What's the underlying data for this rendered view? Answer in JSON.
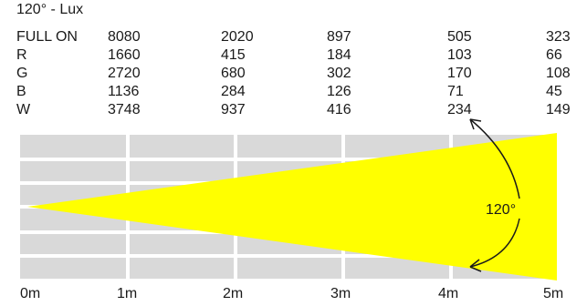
{
  "chart_data": {
    "type": "table",
    "title": "120° - Lux",
    "beam_angle": "120°",
    "distances": [
      "0m",
      "1m",
      "2m",
      "3m",
      "4m",
      "5m"
    ],
    "rows": [
      {
        "label": "FULL ON",
        "values": [
          "8080",
          "2020",
          "897",
          "505",
          "323"
        ]
      },
      {
        "label": "R",
        "values": [
          "1660",
          "415",
          "184",
          "103",
          "66"
        ]
      },
      {
        "label": "G",
        "values": [
          "2720",
          "680",
          "302",
          "170",
          "108"
        ]
      },
      {
        "label": "B",
        "values": [
          "1136",
          "284",
          "126",
          "71",
          "45"
        ]
      },
      {
        "label": "W",
        "values": [
          "3748",
          "937",
          "416",
          "234",
          "149"
        ]
      }
    ],
    "colors": {
      "beam": "#ffff00",
      "grid_background": "#d9d9d9",
      "grid_lines": "#ffffff",
      "arrow": "#1a1a1a"
    }
  }
}
